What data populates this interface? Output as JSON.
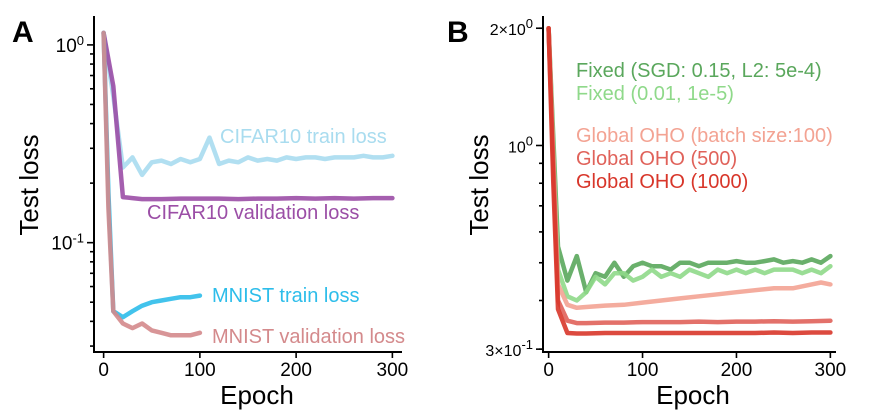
{
  "chart_data": [
    {
      "panel": "A",
      "type": "line",
      "xlabel": "Epoch",
      "ylabel": "Test loss",
      "xlim": [
        -10,
        310
      ],
      "ylim": [
        0.028,
        1.4
      ],
      "yscale": "log",
      "xticks": [
        0,
        100,
        200,
        300
      ],
      "yticks": [
        {
          "value": 1.0,
          "base": "10",
          "exp": "0"
        },
        {
          "value": 0.1,
          "base": "10",
          "exp": "-1"
        }
      ],
      "series": [
        {
          "name": "CIFAR10 train loss",
          "color": "#a9dcef",
          "x": [
            0,
            10,
            20,
            30,
            40,
            50,
            60,
            70,
            80,
            90,
            100,
            110,
            120,
            130,
            140,
            150,
            160,
            170,
            180,
            190,
            200,
            210,
            220,
            230,
            240,
            250,
            260,
            270,
            280,
            290,
            300
          ],
          "y": [
            1.15,
            0.55,
            0.24,
            0.27,
            0.22,
            0.255,
            0.26,
            0.25,
            0.265,
            0.255,
            0.265,
            0.34,
            0.25,
            0.26,
            0.255,
            0.27,
            0.26,
            0.265,
            0.26,
            0.27,
            0.265,
            0.27,
            0.27,
            0.265,
            0.27,
            0.27,
            0.27,
            0.275,
            0.27,
            0.27,
            0.275
          ]
        },
        {
          "name": "CIFAR10 validation loss",
          "color": "#9b4ea6",
          "x": [
            0,
            10,
            20,
            30,
            40,
            60,
            80,
            100,
            120,
            140,
            160,
            180,
            200,
            220,
            240,
            260,
            280,
            300
          ],
          "y": [
            1.15,
            0.62,
            0.17,
            0.168,
            0.166,
            0.166,
            0.167,
            0.167,
            0.167,
            0.166,
            0.167,
            0.167,
            0.168,
            0.167,
            0.168,
            0.167,
            0.168,
            0.168
          ]
        },
        {
          "name": "MNIST train loss",
          "color": "#2dbdea",
          "x": [
            0,
            5,
            10,
            20,
            30,
            40,
            50,
            60,
            70,
            80,
            90,
            100
          ],
          "y": [
            1.15,
            0.18,
            0.045,
            0.042,
            0.045,
            0.048,
            0.05,
            0.051,
            0.052,
            0.053,
            0.053,
            0.054
          ]
        },
        {
          "name": "MNIST validation loss",
          "color": "#d48a8c",
          "x": [
            0,
            5,
            10,
            20,
            30,
            40,
            50,
            60,
            70,
            80,
            90,
            100
          ],
          "y": [
            1.15,
            0.15,
            0.045,
            0.039,
            0.037,
            0.039,
            0.036,
            0.035,
            0.034,
            0.034,
            0.034,
            0.035
          ]
        }
      ]
    },
    {
      "panel": "B",
      "type": "line",
      "xlabel": "Epoch",
      "ylabel": "Test loss",
      "xlim": [
        -6,
        306
      ],
      "ylim": [
        0.295,
        2.15
      ],
      "yscale": "log",
      "xticks": [
        0,
        100,
        200,
        300
      ],
      "yticks": [
        {
          "value": 2.0,
          "base": "2×10",
          "exp": "0"
        },
        {
          "value": 1.0,
          "base": "10",
          "exp": "0"
        },
        {
          "value": 0.3,
          "base": "3×10",
          "exp": "-1"
        }
      ],
      "series": [
        {
          "name": "Fixed (SGD: 0.15, L2: 5e-4)",
          "color": "#5aa75c",
          "x": [
            0,
            10,
            20,
            30,
            40,
            50,
            60,
            70,
            80,
            90,
            100,
            110,
            120,
            130,
            140,
            150,
            160,
            170,
            180,
            190,
            200,
            210,
            220,
            230,
            240,
            250,
            260,
            270,
            280,
            290,
            300
          ],
          "y": [
            2.0,
            0.55,
            0.45,
            0.52,
            0.42,
            0.47,
            0.46,
            0.5,
            0.46,
            0.49,
            0.5,
            0.49,
            0.49,
            0.48,
            0.5,
            0.5,
            0.49,
            0.5,
            0.5,
            0.5,
            0.505,
            0.5,
            0.5,
            0.505,
            0.51,
            0.5,
            0.505,
            0.5,
            0.51,
            0.5,
            0.52
          ]
        },
        {
          "name": "Fixed (0.01, 1e-5)",
          "color": "#8fd98a",
          "x": [
            0,
            10,
            20,
            30,
            40,
            50,
            60,
            70,
            80,
            90,
            100,
            110,
            120,
            130,
            140,
            150,
            160,
            170,
            180,
            190,
            200,
            210,
            220,
            230,
            240,
            250,
            260,
            270,
            280,
            290,
            300
          ],
          "y": [
            2.0,
            0.48,
            0.41,
            0.4,
            0.42,
            0.46,
            0.44,
            0.47,
            0.47,
            0.45,
            0.46,
            0.48,
            0.46,
            0.47,
            0.46,
            0.48,
            0.47,
            0.46,
            0.48,
            0.47,
            0.48,
            0.47,
            0.48,
            0.47,
            0.48,
            0.48,
            0.48,
            0.47,
            0.48,
            0.47,
            0.49
          ]
        },
        {
          "name": "Global OHO (batch size:100)",
          "color": "#f3a393",
          "x": [
            0,
            10,
            20,
            30,
            40,
            60,
            80,
            100,
            120,
            140,
            160,
            180,
            200,
            220,
            240,
            260,
            280,
            290,
            300
          ],
          "y": [
            2.0,
            0.44,
            0.39,
            0.383,
            0.385,
            0.388,
            0.39,
            0.395,
            0.4,
            0.405,
            0.41,
            0.415,
            0.42,
            0.425,
            0.43,
            0.43,
            0.44,
            0.445,
            0.44
          ]
        },
        {
          "name": "Global OHO (500)",
          "color": "#e0625a",
          "x": [
            0,
            10,
            20,
            30,
            40,
            60,
            80,
            100,
            120,
            140,
            160,
            180,
            200,
            220,
            240,
            260,
            280,
            300
          ],
          "y": [
            2.0,
            0.4,
            0.355,
            0.35,
            0.35,
            0.351,
            0.351,
            0.352,
            0.352,
            0.352,
            0.353,
            0.352,
            0.353,
            0.353,
            0.354,
            0.353,
            0.354,
            0.355
          ]
        },
        {
          "name": "Global OHO (1000)",
          "color": "#d8362a",
          "x": [
            0,
            5,
            10,
            20,
            30,
            40,
            60,
            80,
            100,
            120,
            140,
            160,
            180,
            200,
            220,
            240,
            260,
            280,
            300
          ],
          "y": [
            2.0,
            0.8,
            0.38,
            0.33,
            0.329,
            0.329,
            0.33,
            0.33,
            0.33,
            0.33,
            0.33,
            0.33,
            0.33,
            0.33,
            0.33,
            0.331,
            0.33,
            0.331,
            0.331
          ]
        }
      ]
    }
  ]
}
